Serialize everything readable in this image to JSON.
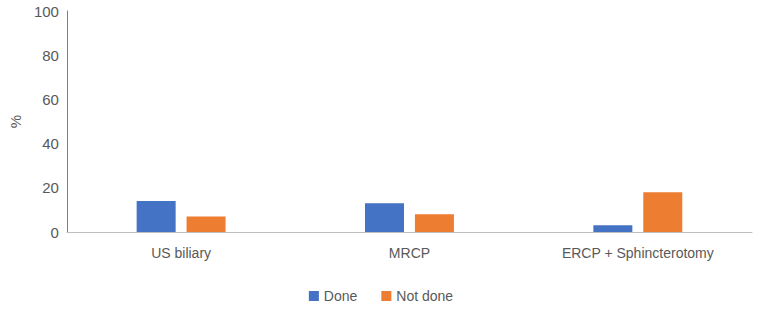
{
  "chart_data": {
    "type": "bar",
    "categories": [
      "US biliary",
      "MRCP",
      "ERCP + Sphincterotomy"
    ],
    "series": [
      {
        "name": "Done",
        "color": "#4472c4",
        "values": [
          14,
          13,
          3
        ]
      },
      {
        "name": "Not done",
        "color": "#ed7d31",
        "values": [
          7,
          8,
          18
        ]
      }
    ],
    "y_label": "%",
    "ylim": [
      0,
      100
    ],
    "yticks": [
      0,
      20,
      40,
      60,
      80,
      100
    ],
    "grid": false,
    "legend": "bottom"
  }
}
